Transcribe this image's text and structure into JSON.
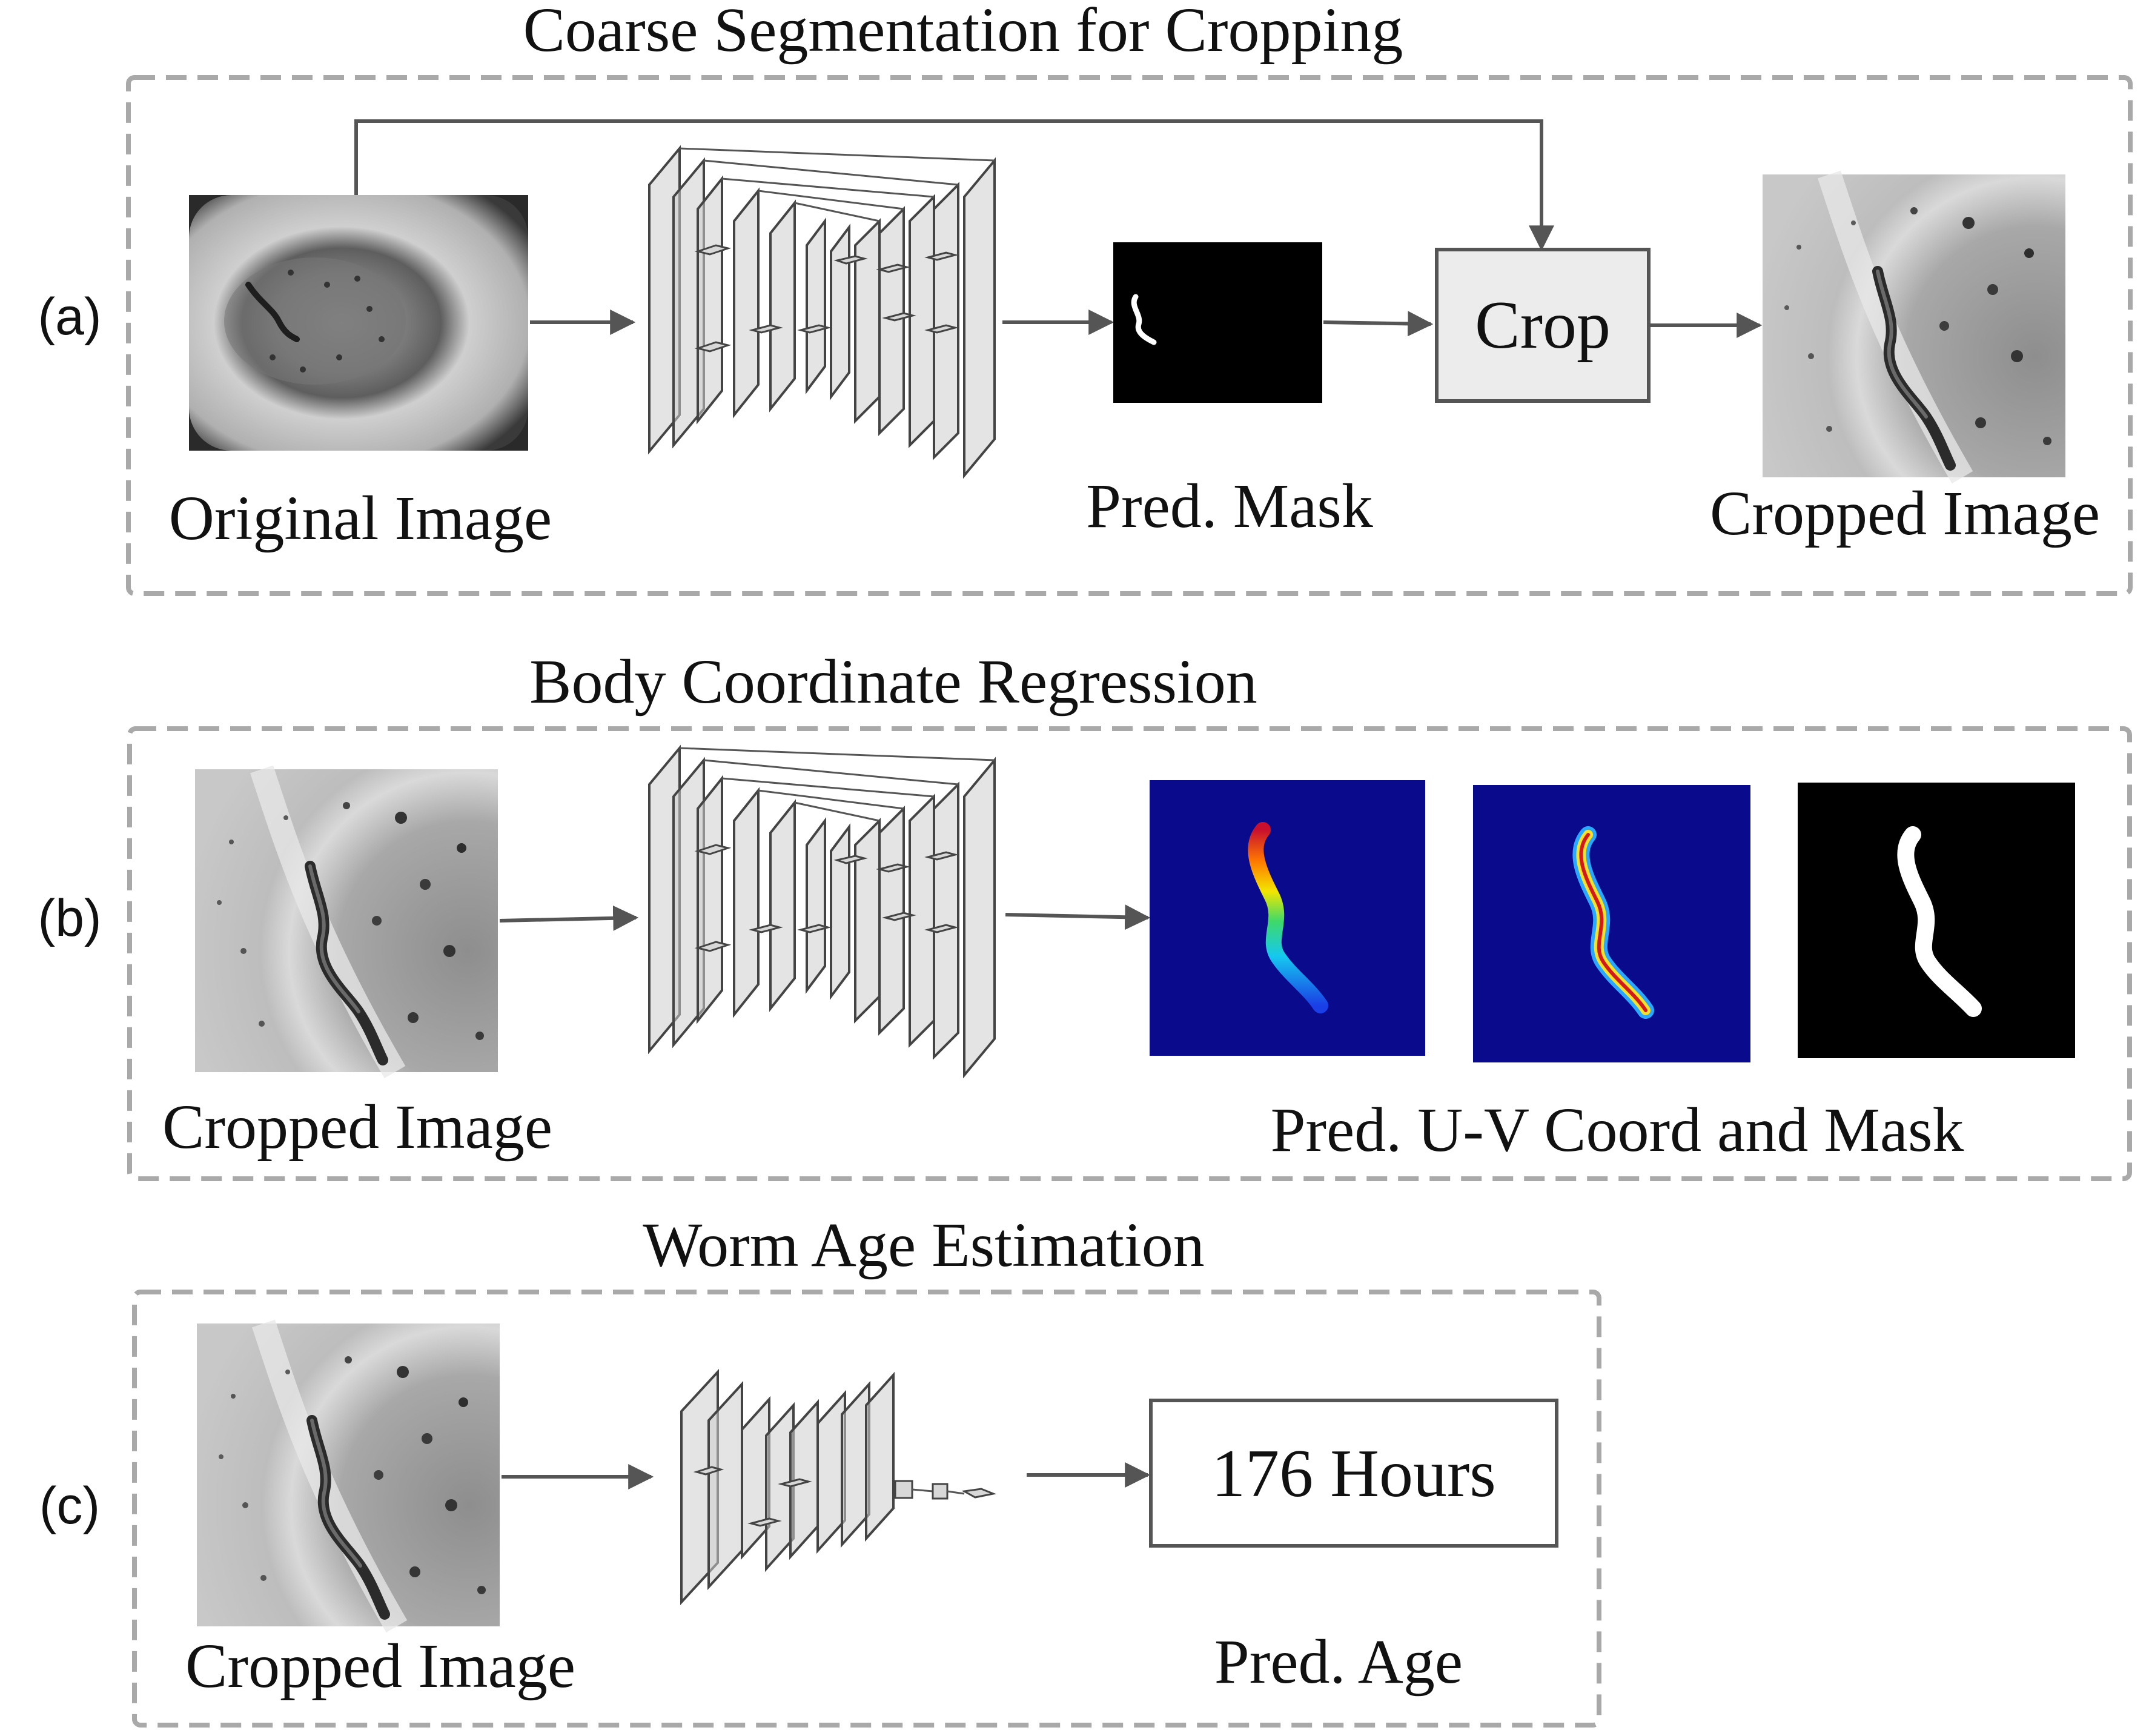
{
  "panels": {
    "a": {
      "label": "(a)",
      "title": "Coarse Segmentation for Cropping",
      "captions": {
        "original": "Original Image",
        "mask": "Pred.  Mask",
        "cropped": "Cropped Image"
      },
      "crop_box": "Crop"
    },
    "b": {
      "label": "(b)",
      "title": "Body Coordinate Regression",
      "captions": {
        "cropped": "Cropped Image",
        "output": "Pred. U-V Coord and Mask"
      }
    },
    "c": {
      "label": "(c)",
      "title": "Worm Age Estimation",
      "captions": {
        "cropped": "Cropped Image",
        "age": "Pred. Age"
      },
      "age_box": "176 Hours"
    }
  },
  "colors": {
    "dashed_border": "#a9a9a9",
    "arrow": "#555555",
    "heatmap_background": "#0a0a8c",
    "mask_background": "#000000",
    "mask_foreground": "#ffffff",
    "crop_box_fill": "#ececec"
  }
}
